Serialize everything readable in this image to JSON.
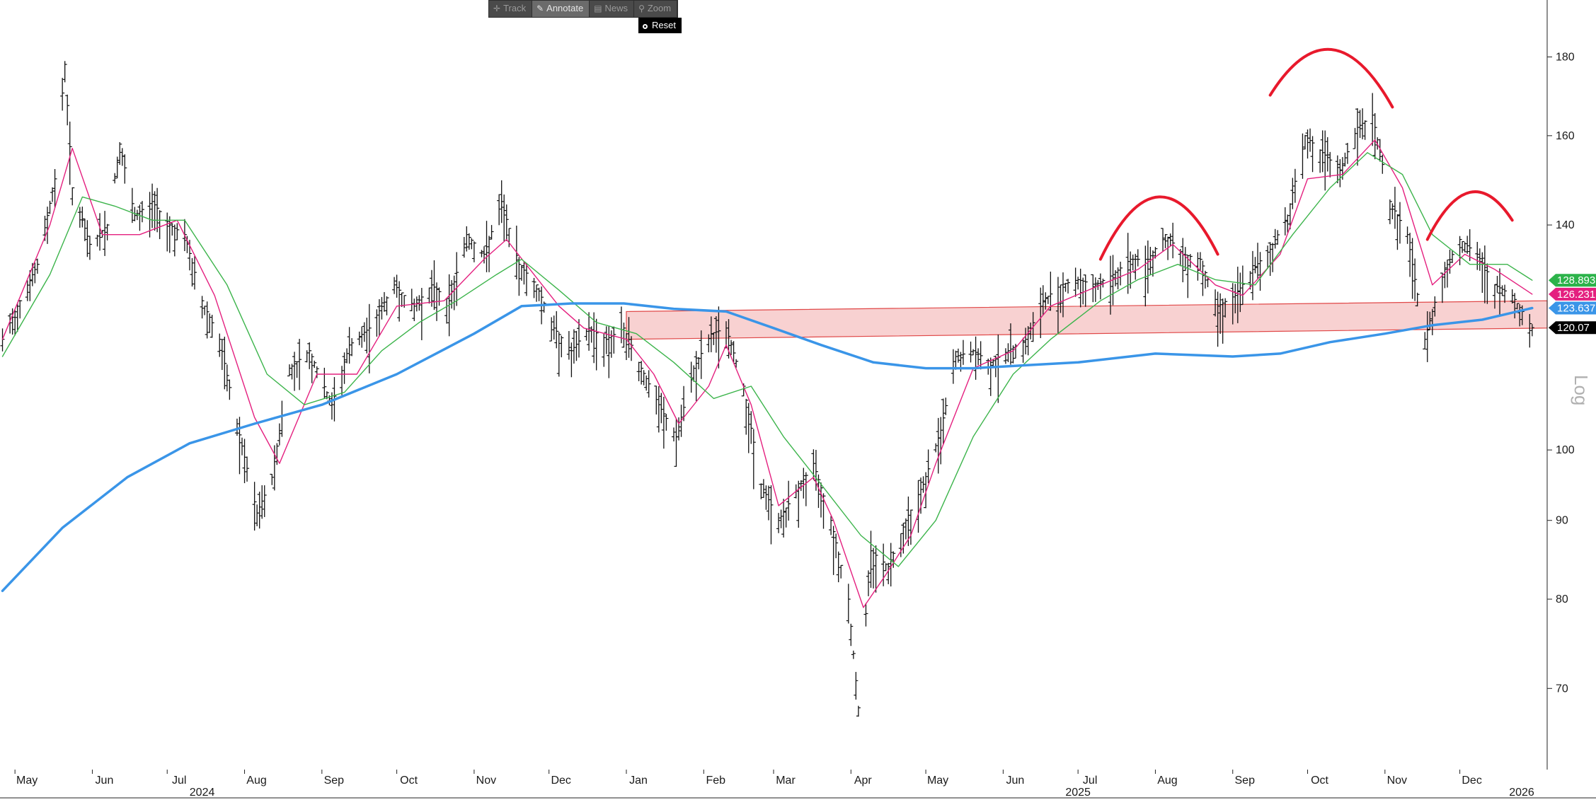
{
  "toolbar": {
    "track_label": "Track",
    "annotate_label": "Annotate",
    "news_label": "News",
    "zoom_label": "Zoom",
    "reset_label": "Reset"
  },
  "chart_data": {
    "type": "line",
    "y_scale": "log",
    "y_scale_label": "Log",
    "ylim": [
      62,
      196
    ],
    "y_ticks": [
      70,
      80,
      90,
      100,
      140,
      160,
      180
    ],
    "x_start": "2024-04-25",
    "x_end": "2026-01-05",
    "x_month_ticks": [
      {
        "date": "2024-05-01",
        "label": "May"
      },
      {
        "date": "2024-06-01",
        "label": "Jun"
      },
      {
        "date": "2024-07-01",
        "label": "Jul"
      },
      {
        "date": "2024-08-01",
        "label": "Aug"
      },
      {
        "date": "2024-09-01",
        "label": "Sep"
      },
      {
        "date": "2024-10-01",
        "label": "Oct"
      },
      {
        "date": "2024-11-01",
        "label": "Nov"
      },
      {
        "date": "2024-12-01",
        "label": "Dec"
      },
      {
        "date": "2025-01-01",
        "label": "Jan"
      },
      {
        "date": "2025-02-01",
        "label": "Feb"
      },
      {
        "date": "2025-03-01",
        "label": "Mar"
      },
      {
        "date": "2025-04-01",
        "label": "Apr"
      },
      {
        "date": "2025-05-01",
        "label": "May"
      },
      {
        "date": "2025-06-01",
        "label": "Jun"
      },
      {
        "date": "2025-07-01",
        "label": "Jul"
      },
      {
        "date": "2025-08-01",
        "label": "Aug"
      },
      {
        "date": "2025-09-01",
        "label": "Sep"
      },
      {
        "date": "2025-10-01",
        "label": "Oct"
      },
      {
        "date": "2025-11-01",
        "label": "Nov"
      },
      {
        "date": "2025-12-01",
        "label": "Dec"
      }
    ],
    "x_year_labels": [
      {
        "date": "2024-07-15",
        "label": "2024"
      },
      {
        "date": "2025-07-01",
        "label": "2025"
      },
      {
        "date": "2026-01-01",
        "label": "2026"
      }
    ],
    "price_anchors": [
      [
        "2024-04-26",
        118
      ],
      [
        "2024-05-03",
        125
      ],
      [
        "2024-05-10",
        132
      ],
      [
        "2024-05-17",
        150
      ],
      [
        "2024-05-21",
        178
      ],
      [
        "2024-05-24",
        148
      ],
      [
        "2024-05-31",
        136
      ],
      [
        "2024-06-07",
        140
      ],
      [
        "2024-06-12",
        158
      ],
      [
        "2024-06-18",
        142
      ],
      [
        "2024-06-25",
        145
      ],
      [
        "2024-07-02",
        140
      ],
      [
        "2024-07-08",
        138
      ],
      [
        "2024-07-15",
        125
      ],
      [
        "2024-07-22",
        118
      ],
      [
        "2024-07-29",
        104
      ],
      [
        "2024-08-06",
        91
      ],
      [
        "2024-08-12",
        96
      ],
      [
        "2024-08-19",
        113
      ],
      [
        "2024-08-27",
        116
      ],
      [
        "2024-09-05",
        107
      ],
      [
        "2024-09-12",
        117
      ],
      [
        "2024-09-20",
        120
      ],
      [
        "2024-09-30",
        128
      ],
      [
        "2024-10-08",
        124
      ],
      [
        "2024-10-15",
        128
      ],
      [
        "2024-10-22",
        125
      ],
      [
        "2024-10-29",
        138
      ],
      [
        "2024-11-05",
        134
      ],
      [
        "2024-11-12",
        145
      ],
      [
        "2024-11-19",
        132
      ],
      [
        "2024-11-26",
        128
      ],
      [
        "2024-12-03",
        120
      ],
      [
        "2024-12-10",
        116
      ],
      [
        "2024-12-17",
        120
      ],
      [
        "2024-12-24",
        118
      ],
      [
        "2024-12-31",
        120
      ],
      [
        "2025-01-07",
        113
      ],
      [
        "2025-01-14",
        107
      ],
      [
        "2025-01-21",
        102
      ],
      [
        "2025-01-28",
        113
      ],
      [
        "2025-02-04",
        119
      ],
      [
        "2025-02-10",
        120
      ],
      [
        "2025-02-17",
        110
      ],
      [
        "2025-02-24",
        95
      ],
      [
        "2025-03-03",
        90
      ],
      [
        "2025-03-10",
        94
      ],
      [
        "2025-03-17",
        98
      ],
      [
        "2025-03-24",
        90
      ],
      [
        "2025-03-31",
        80
      ],
      [
        "2025-04-04",
        68
      ],
      [
        "2025-04-09",
        86
      ],
      [
        "2025-04-16",
        84
      ],
      [
        "2025-04-23",
        90
      ],
      [
        "2025-04-30",
        95
      ],
      [
        "2025-05-07",
        103
      ],
      [
        "2025-05-13",
        115
      ],
      [
        "2025-05-20",
        116
      ],
      [
        "2025-05-27",
        114
      ],
      [
        "2025-06-03",
        116
      ],
      [
        "2025-06-10",
        118
      ],
      [
        "2025-06-17",
        125
      ],
      [
        "2025-06-24",
        128
      ],
      [
        "2025-07-01",
        129
      ],
      [
        "2025-07-08",
        128
      ],
      [
        "2025-07-15",
        130
      ],
      [
        "2025-07-22",
        133
      ],
      [
        "2025-07-29",
        133
      ],
      [
        "2025-08-05",
        138
      ],
      [
        "2025-08-12",
        134
      ],
      [
        "2025-08-19",
        133
      ],
      [
        "2025-08-26",
        124
      ],
      [
        "2025-09-02",
        126
      ],
      [
        "2025-09-09",
        131
      ],
      [
        "2025-09-16",
        135
      ],
      [
        "2025-09-23",
        142
      ],
      [
        "2025-09-30",
        160
      ],
      [
        "2025-10-07",
        156
      ],
      [
        "2025-10-14",
        152
      ],
      [
        "2025-10-21",
        162
      ],
      [
        "2025-10-27",
        165
      ],
      [
        "2025-11-03",
        145
      ],
      [
        "2025-11-10",
        138
      ],
      [
        "2025-11-17",
        118
      ],
      [
        "2025-11-24",
        130
      ],
      [
        "2025-12-01",
        137
      ],
      [
        "2025-12-08",
        134
      ],
      [
        "2025-12-15",
        128
      ],
      [
        "2025-12-22",
        126
      ],
      [
        "2025-12-30",
        120.07
      ]
    ],
    "series": [
      {
        "name": "Price (OHLC bars)",
        "color": "#111111",
        "last_value": 120.07
      },
      {
        "name": "Short moving average",
        "color": "#e4207f",
        "last_value": 126.231,
        "points": [
          [
            "2024-04-26",
            118
          ],
          [
            "2024-05-15",
            140
          ],
          [
            "2024-05-24",
            157
          ],
          [
            "2024-06-05",
            138
          ],
          [
            "2024-06-20",
            138
          ],
          [
            "2024-07-05",
            141
          ],
          [
            "2024-07-20",
            126
          ],
          [
            "2024-08-05",
            105
          ],
          [
            "2024-08-15",
            98
          ],
          [
            "2024-08-30",
            112
          ],
          [
            "2024-09-15",
            112
          ],
          [
            "2024-10-01",
            124
          ],
          [
            "2024-10-20",
            125
          ],
          [
            "2024-11-05",
            133
          ],
          [
            "2024-11-14",
            137
          ],
          [
            "2024-11-25",
            130
          ],
          [
            "2024-12-05",
            124
          ],
          [
            "2024-12-15",
            120
          ],
          [
            "2025-01-01",
            118
          ],
          [
            "2025-01-12",
            112
          ],
          [
            "2025-01-22",
            104
          ],
          [
            "2025-02-03",
            110
          ],
          [
            "2025-02-10",
            117
          ],
          [
            "2025-02-20",
            107
          ],
          [
            "2025-03-03",
            92
          ],
          [
            "2025-03-10",
            94
          ],
          [
            "2025-03-17",
            96
          ],
          [
            "2025-03-25",
            90
          ],
          [
            "2025-04-06",
            79
          ],
          [
            "2025-04-15",
            83
          ],
          [
            "2025-04-25",
            88
          ],
          [
            "2025-05-05",
            98
          ],
          [
            "2025-05-20",
            113
          ],
          [
            "2025-06-05",
            116
          ],
          [
            "2025-06-20",
            124
          ],
          [
            "2025-07-10",
            128
          ],
          [
            "2025-07-25",
            131
          ],
          [
            "2025-08-08",
            136
          ],
          [
            "2025-08-25",
            128
          ],
          [
            "2025-09-05",
            126
          ],
          [
            "2025-09-20",
            134
          ],
          [
            "2025-10-01",
            150
          ],
          [
            "2025-10-15",
            151
          ],
          [
            "2025-10-28",
            159
          ],
          [
            "2025-11-08",
            148
          ],
          [
            "2025-11-20",
            128
          ],
          [
            "2025-12-03",
            134
          ],
          [
            "2025-12-15",
            131
          ],
          [
            "2025-12-30",
            126.231
          ]
        ]
      },
      {
        "name": "Medium moving average",
        "color": "#3cb44b",
        "last_value": 128.893,
        "points": [
          [
            "2024-04-26",
            115
          ],
          [
            "2024-05-15",
            130
          ],
          [
            "2024-05-28",
            146
          ],
          [
            "2024-06-10",
            144
          ],
          [
            "2024-06-25",
            141
          ],
          [
            "2024-07-08",
            141
          ],
          [
            "2024-07-25",
            128
          ],
          [
            "2024-08-10",
            112
          ],
          [
            "2024-08-25",
            107
          ],
          [
            "2024-09-10",
            109
          ],
          [
            "2024-09-25",
            116
          ],
          [
            "2024-10-10",
            121
          ],
          [
            "2024-10-25",
            125
          ],
          [
            "2024-11-10",
            130
          ],
          [
            "2024-11-20",
            133
          ],
          [
            "2024-12-05",
            127
          ],
          [
            "2024-12-20",
            121
          ],
          [
            "2025-01-05",
            119
          ],
          [
            "2025-01-20",
            114
          ],
          [
            "2025-02-05",
            108
          ],
          [
            "2025-02-20",
            110
          ],
          [
            "2025-03-05",
            102
          ],
          [
            "2025-03-20",
            95
          ],
          [
            "2025-04-05",
            88
          ],
          [
            "2025-04-20",
            84
          ],
          [
            "2025-05-05",
            90
          ],
          [
            "2025-05-20",
            102
          ],
          [
            "2025-06-05",
            112
          ],
          [
            "2025-06-20",
            118
          ],
          [
            "2025-07-10",
            125
          ],
          [
            "2025-07-25",
            129
          ],
          [
            "2025-08-10",
            132
          ],
          [
            "2025-08-25",
            129
          ],
          [
            "2025-09-10",
            128
          ],
          [
            "2025-09-25",
            138
          ],
          [
            "2025-10-10",
            148
          ],
          [
            "2025-10-25",
            156
          ],
          [
            "2025-11-08",
            151
          ],
          [
            "2025-11-20",
            138
          ],
          [
            "2025-12-05",
            132
          ],
          [
            "2025-12-20",
            132
          ],
          [
            "2025-12-30",
            128.893
          ]
        ]
      },
      {
        "name": "Long moving average",
        "color": "#3a95e8",
        "last_value": 123.6375,
        "points": [
          [
            "2024-04-26",
            81
          ],
          [
            "2024-05-20",
            89
          ],
          [
            "2024-06-15",
            96
          ],
          [
            "2024-07-10",
            101
          ],
          [
            "2024-08-05",
            104
          ],
          [
            "2024-09-01",
            107
          ],
          [
            "2024-10-01",
            112
          ],
          [
            "2024-11-01",
            119
          ],
          [
            "2024-11-20",
            124
          ],
          [
            "2024-12-10",
            124.5
          ],
          [
            "2024-12-31",
            124.5
          ],
          [
            "2025-01-20",
            123.5
          ],
          [
            "2025-02-10",
            123
          ],
          [
            "2025-03-01",
            120
          ],
          [
            "2025-03-20",
            117
          ],
          [
            "2025-04-10",
            114
          ],
          [
            "2025-05-01",
            113
          ],
          [
            "2025-05-20",
            113
          ],
          [
            "2025-06-10",
            113.5
          ],
          [
            "2025-07-01",
            114
          ],
          [
            "2025-08-01",
            115.5
          ],
          [
            "2025-09-01",
            115
          ],
          [
            "2025-09-20",
            115.5
          ],
          [
            "2025-10-10",
            117.5
          ],
          [
            "2025-11-01",
            119
          ],
          [
            "2025-11-20",
            120.5
          ],
          [
            "2025-12-10",
            121.5
          ],
          [
            "2025-12-30",
            123.6375
          ]
        ]
      }
    ],
    "annotations": {
      "support_zone": {
        "start": "2025-01-01",
        "end": "2026-01-05",
        "lower_start": 118,
        "upper_start": 123,
        "lower_end": 120,
        "upper_end": 125,
        "fill": "#f6c6c6",
        "stroke": "#e04848"
      },
      "arcs": [
        {
          "start": "2025-07-10",
          "end": "2025-08-26",
          "start_val": 133,
          "end_val": 134,
          "peak_val": 146
        },
        {
          "start": "2025-09-16",
          "end": "2025-11-04",
          "start_val": 170,
          "end_val": 167,
          "peak_val": 182
        },
        {
          "start": "2025-11-18",
          "end": "2025-12-22",
          "start_val": 137,
          "end_val": 141,
          "peak_val": 147
        }
      ],
      "arc_color": "#e8192c"
    },
    "value_badges": [
      {
        "label": "128.893",
        "value": 128.893,
        "color": "#2cb34a",
        "text_color": "#ffffff"
      },
      {
        "label": "126.231",
        "value": 126.231,
        "color": "#e4207f",
        "text_color": "#ffffff"
      },
      {
        "label": "123.6375",
        "value": 123.6375,
        "color": "#3a95e8",
        "text_color": "#ffffff"
      },
      {
        "label": "120.07",
        "value": 120.07,
        "color": "#000000",
        "text_color": "#ffffff"
      }
    ]
  }
}
